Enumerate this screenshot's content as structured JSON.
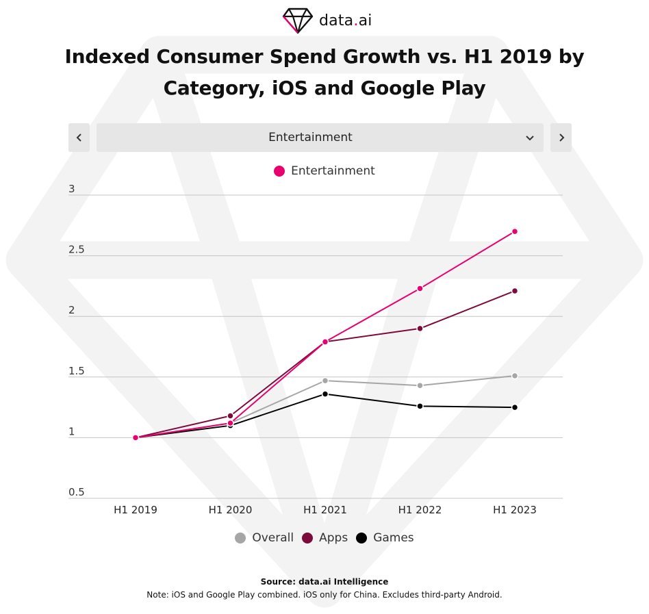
{
  "brand": {
    "name_main": "data",
    "name_dot": ".",
    "name_ai": "ai",
    "accent": "#e8006f"
  },
  "title": {
    "line1": "Indexed Consumer Spend Growth vs. H1 2019 by",
    "line2": "Category, iOS and Google Play"
  },
  "selector": {
    "value": "Entertainment",
    "prev_icon": "chevron-left-icon",
    "next_icon": "chevron-right-icon",
    "dropdown_icon": "chevron-down-icon"
  },
  "chart_data": {
    "type": "line",
    "title": "Indexed Consumer Spend Growth vs. H1 2019 by Category, iOS and Google Play",
    "categories": [
      "H1 2019",
      "H1 2020",
      "H1 2021",
      "H1 2022",
      "H1 2023"
    ],
    "ylim": [
      0.5,
      3
    ],
    "yticks": [
      0.5,
      1,
      1.5,
      2,
      2.5,
      3
    ],
    "ytick_labels": [
      "0.5",
      "1",
      "1.5",
      "2",
      "2.5",
      "3"
    ],
    "grid": true,
    "series": [
      {
        "name": "Overall",
        "color": "#a6a6a6",
        "values": [
          1.0,
          1.12,
          1.47,
          1.43,
          1.51
        ]
      },
      {
        "name": "Games",
        "color": "#000000",
        "values": [
          1.0,
          1.1,
          1.36,
          1.26,
          1.25
        ]
      },
      {
        "name": "Apps",
        "color": "#7d0a3c",
        "values": [
          1.0,
          1.18,
          1.79,
          1.9,
          2.21
        ]
      },
      {
        "name": "Entertainment",
        "color": "#e8006f",
        "values": [
          1.0,
          1.12,
          1.79,
          2.23,
          2.7
        ]
      }
    ],
    "legend_top": [
      "Entertainment"
    ],
    "legend_bottom": [
      "Overall",
      "Apps",
      "Games"
    ]
  },
  "footer": {
    "source": "Source: data.ai Intelligence",
    "note": "Note: iOS and Google Play combined. iOS only for China. Excludes third-party Android."
  }
}
